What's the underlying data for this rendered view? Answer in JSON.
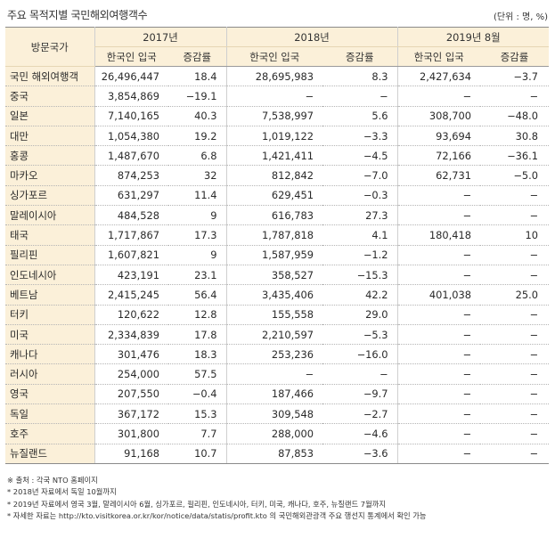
{
  "title": "주요 목적지별 국민해외여행객수",
  "unit": "(단위 : 명, %)",
  "header": {
    "country_col": "방문국가",
    "years": [
      "2017년",
      "2018년",
      "2019년 8월"
    ],
    "sub": [
      "한국인 입국",
      "증감률",
      "한국인 입국",
      "증감률",
      "한국인 입국",
      "증감률"
    ]
  },
  "rows": [
    {
      "country": "국민 해외여행객",
      "v": [
        "26,496,447",
        "18.4",
        "28,695,983",
        "8.3",
        "2,427,634",
        "−3.7"
      ]
    },
    {
      "country": "중국",
      "v": [
        "3,854,869",
        "−19.1",
        "−",
        "−",
        "−",
        "−"
      ]
    },
    {
      "country": "일본",
      "v": [
        "7,140,165",
        "40.3",
        "7,538,997",
        "5.6",
        "308,700",
        "−48.0"
      ]
    },
    {
      "country": "대만",
      "v": [
        "1,054,380",
        "19.2",
        "1,019,122",
        "−3.3",
        "93,694",
        "30.8"
      ]
    },
    {
      "country": "홍콩",
      "v": [
        "1,487,670",
        "6.8",
        "1,421,411",
        "−4.5",
        "72,166",
        "−36.1"
      ]
    },
    {
      "country": "마카오",
      "v": [
        "874,253",
        "32",
        "812,842",
        "−7.0",
        "62,731",
        "−5.0"
      ]
    },
    {
      "country": "싱가포르",
      "v": [
        "631,297",
        "11.4",
        "629,451",
        "−0.3",
        "−",
        "−"
      ]
    },
    {
      "country": "말레이시아",
      "v": [
        "484,528",
        "9",
        "616,783",
        "27.3",
        "−",
        "−"
      ]
    },
    {
      "country": "태국",
      "v": [
        "1,717,867",
        "17.3",
        "1,787,818",
        "4.1",
        "180,418",
        "10"
      ]
    },
    {
      "country": "필리핀",
      "v": [
        "1,607,821",
        "9",
        "1,587,959",
        "−1.2",
        "−",
        "−"
      ]
    },
    {
      "country": "인도네시아",
      "v": [
        "423,191",
        "23.1",
        "358,527",
        "−15.3",
        "−",
        "−"
      ]
    },
    {
      "country": "베트남",
      "v": [
        "2,415,245",
        "56.4",
        "3,435,406",
        "42.2",
        "401,038",
        "25.0"
      ]
    },
    {
      "country": "터키",
      "v": [
        "120,622",
        "12.8",
        "155,558",
        "29.0",
        "−",
        "−"
      ]
    },
    {
      "country": "미국",
      "v": [
        "2,334,839",
        "17.8",
        "2,210,597",
        "−5.3",
        "−",
        "−"
      ]
    },
    {
      "country": "캐나다",
      "v": [
        "301,476",
        "18.3",
        "253,236",
        "−16.0",
        "−",
        "−"
      ]
    },
    {
      "country": "러시아",
      "v": [
        "254,000",
        "57.5",
        "−",
        "−",
        "−",
        "−"
      ]
    },
    {
      "country": "영국",
      "v": [
        "207,550",
        "−0.4",
        "187,466",
        "−9.7",
        "−",
        "−"
      ]
    },
    {
      "country": "독일",
      "v": [
        "367,172",
        "15.3",
        "309,548",
        "−2.7",
        "−",
        "−"
      ]
    },
    {
      "country": "호주",
      "v": [
        "301,800",
        "7.7",
        "288,000",
        "−4.6",
        "−",
        "−"
      ]
    },
    {
      "country": "뉴질랜드",
      "v": [
        "91,168",
        "10.7",
        "87,853",
        "−3.6",
        "−",
        "−"
      ]
    }
  ],
  "notes": [
    "※ 출처 : 각국 NTO 홈페이지",
    "* 2018년 자료에서 독일 10월까지",
    "* 2019년 자료에서 영국 3월, 말레이시아 6월, 싱가포르, 필리핀, 인도네시아, 터키, 미국, 캐나다, 호주, 뉴질랜드 7월까지",
    "* 자세한 자료는 http://kto.visitkorea.or.kr/kor/notice/data/statis/profit.kto 의 국민해외관광객 주요 행선지 통계에서 확인 가능"
  ]
}
